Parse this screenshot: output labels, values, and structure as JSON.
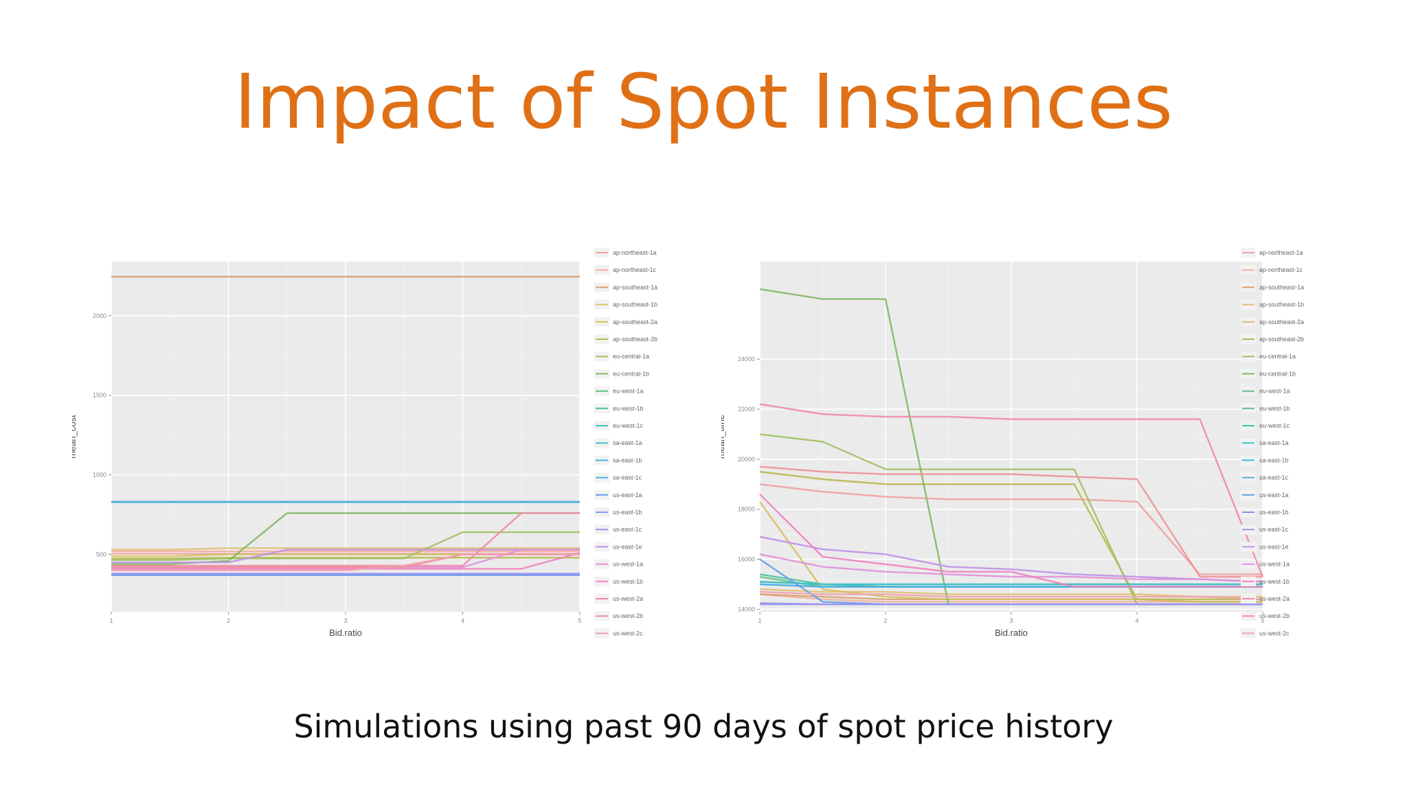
{
  "slide": {
    "title": "Impact of Spot Instances",
    "caption": "Simulations using past 90 days of spot price history",
    "title_color": "#e07016"
  },
  "chart_data": [
    {
      "type": "line",
      "xlabel": "Bid.ratio",
      "ylabel": "mean_cost",
      "xlim": [
        1,
        5
      ],
      "ylim": [
        140,
        2340
      ],
      "x_ticks": [
        1,
        2,
        3,
        4,
        5
      ],
      "y_ticks": [
        500,
        1000,
        1500,
        2000
      ],
      "grid": true,
      "legend_position": "right",
      "x": [
        1,
        1.5,
        2,
        2.5,
        3,
        3.5,
        4,
        4.5,
        5
      ],
      "series": [
        {
          "name": "ap-northeast-1a",
          "color": "#f0a0a0",
          "values": [
            505,
            505,
            505,
            505,
            505,
            505,
            505,
            505,
            505
          ]
        },
        {
          "name": "ap-northeast-1c",
          "color": "#f3b0a0",
          "values": [
            520,
            520,
            520,
            520,
            520,
            520,
            520,
            520,
            520
          ]
        },
        {
          "name": "ap-southeast-1a",
          "color": "#d8a070",
          "values": [
            2245,
            2245,
            2245,
            2245,
            2245,
            2245,
            2245,
            2245,
            2245
          ]
        },
        {
          "name": "ap-southeast-1b",
          "color": "#e0c070",
          "values": [
            530,
            530,
            540,
            540,
            540,
            540,
            540,
            540,
            540
          ]
        },
        {
          "name": "ap-southeast-2a",
          "color": "#d6c060",
          "values": [
            490,
            490,
            500,
            500,
            500,
            500,
            500,
            500,
            500
          ]
        },
        {
          "name": "ap-southeast-2b",
          "color": "#b8b850",
          "values": [
            475,
            475,
            480,
            480,
            480,
            480,
            480,
            480,
            480
          ]
        },
        {
          "name": "eu-central-1a",
          "color": "#a0c060",
          "values": [
            465,
            465,
            475,
            475,
            475,
            475,
            640,
            640,
            640
          ]
        },
        {
          "name": "eu-central-1b",
          "color": "#80b860",
          "values": [
            440,
            440,
            460,
            760,
            760,
            760,
            760,
            760,
            760
          ]
        },
        {
          "name": "eu-west-1a",
          "color": "#60c080",
          "values": [
            830,
            830,
            830,
            830,
            830,
            830,
            830,
            830,
            830
          ]
        },
        {
          "name": "eu-west-1b",
          "color": "#50c0a0",
          "values": [
            830,
            830,
            830,
            830,
            830,
            830,
            830,
            830,
            830
          ]
        },
        {
          "name": "eu-west-1c",
          "color": "#40c0b0",
          "values": [
            830,
            830,
            830,
            830,
            830,
            830,
            830,
            830,
            830
          ]
        },
        {
          "name": "sa-east-1a",
          "color": "#40c0c8",
          "values": [
            830,
            830,
            830,
            830,
            830,
            830,
            830,
            830,
            830
          ]
        },
        {
          "name": "sa-east-1b",
          "color": "#40b8d8",
          "values": [
            830,
            830,
            830,
            830,
            830,
            830,
            830,
            830,
            830
          ]
        },
        {
          "name": "sa-east-1c",
          "color": "#50b0e0",
          "values": [
            830,
            830,
            830,
            830,
            830,
            830,
            830,
            830,
            830
          ]
        },
        {
          "name": "us-east-1a",
          "color": "#60a0e8",
          "values": [
            370,
            370,
            370,
            370,
            370,
            370,
            370,
            370,
            370
          ]
        },
        {
          "name": "us-east-1b",
          "color": "#8098f0",
          "values": [
            375,
            375,
            375,
            375,
            375,
            375,
            375,
            375,
            375
          ]
        },
        {
          "name": "us-east-1c",
          "color": "#a090f0",
          "values": [
            380,
            380,
            380,
            380,
            380,
            380,
            380,
            380,
            380
          ]
        },
        {
          "name": "us-east-1e",
          "color": "#c090e8",
          "values": [
            450,
            450,
            450,
            530,
            530,
            530,
            530,
            530,
            530
          ]
        },
        {
          "name": "us-west-1a",
          "color": "#e090d8",
          "values": [
            420,
            420,
            420,
            420,
            420,
            420,
            420,
            530,
            530
          ]
        },
        {
          "name": "us-west-1b",
          "color": "#f080c0",
          "values": [
            410,
            410,
            410,
            410,
            410,
            410,
            410,
            410,
            510
          ]
        },
        {
          "name": "us-west-2a",
          "color": "#f088a8",
          "values": [
            430,
            430,
            430,
            430,
            430,
            430,
            430,
            760,
            760
          ]
        },
        {
          "name": "us-west-2b",
          "color": "#f09098",
          "values": [
            420,
            420,
            420,
            420,
            420,
            420,
            500,
            500,
            500
          ]
        },
        {
          "name": "us-west-2c",
          "color": "#f0a0b0",
          "values": [
            400,
            400,
            400,
            400,
            400,
            430,
            500,
            500,
            500
          ]
        }
      ]
    },
    {
      "type": "line",
      "xlabel": "Bid.ratio",
      "ylabel": "mean_time",
      "xlim": [
        1,
        5
      ],
      "ylim": [
        13900,
        27900
      ],
      "x_ticks": [
        1,
        2,
        3,
        4,
        5
      ],
      "y_ticks": [
        14000,
        16000,
        18000,
        20000,
        22000,
        24000
      ],
      "grid": true,
      "legend_position": "right",
      "x": [
        1,
        1.5,
        2,
        2.5,
        3,
        3.5,
        4,
        4.5,
        5
      ],
      "series": [
        {
          "name": "ap-northeast-1a",
          "color": "#f0a0a0",
          "values": [
            19000,
            18700,
            18500,
            18400,
            18400,
            18400,
            18300,
            15400,
            15400
          ]
        },
        {
          "name": "ap-northeast-1c",
          "color": "#f3b0a0",
          "values": [
            14600,
            14400,
            14300,
            14300,
            14300,
            14300,
            14300,
            14300,
            14300
          ]
        },
        {
          "name": "ap-southeast-1a",
          "color": "#d8a070",
          "values": [
            14600,
            14500,
            14400,
            14400,
            14400,
            14400,
            14400,
            14300,
            14300
          ]
        },
        {
          "name": "ap-southeast-1b",
          "color": "#e0c070",
          "values": [
            14800,
            14700,
            14700,
            14600,
            14600,
            14600,
            14600,
            14500,
            14500
          ]
        },
        {
          "name": "ap-southeast-2a",
          "color": "#d6c060",
          "values": [
            18300,
            14800,
            14500,
            14400,
            14400,
            14400,
            14400,
            14300,
            14300
          ]
        },
        {
          "name": "ap-southeast-2b",
          "color": "#b8b850",
          "values": [
            19500,
            19200,
            19000,
            19000,
            19000,
            19000,
            14400,
            14400,
            14400
          ]
        },
        {
          "name": "eu-central-1a",
          "color": "#a0c060",
          "values": [
            21000,
            20700,
            19600,
            19600,
            19600,
            19600,
            14200,
            14200,
            14200
          ]
        },
        {
          "name": "eu-central-1b",
          "color": "#80b860",
          "values": [
            26800,
            26400,
            26400,
            14200,
            14200,
            14200,
            14200,
            14200,
            14200
          ]
        },
        {
          "name": "eu-west-1a",
          "color": "#60c080",
          "values": [
            15300,
            14900,
            14900,
            14900,
            14900,
            14900,
            14900,
            14900,
            14900
          ]
        },
        {
          "name": "eu-west-1b",
          "color": "#50c0a0",
          "values": [
            15400,
            15000,
            15000,
            15000,
            15000,
            15000,
            15000,
            15000,
            15000
          ]
        },
        {
          "name": "eu-west-1c",
          "color": "#40c0b0",
          "values": [
            15100,
            15000,
            14900,
            14900,
            14900,
            14900,
            14900,
            14900,
            14900
          ]
        },
        {
          "name": "sa-east-1a",
          "color": "#40c0c8",
          "values": [
            15100,
            15000,
            15000,
            15000,
            15000,
            15000,
            15000,
            15000,
            15000
          ]
        },
        {
          "name": "sa-east-1b",
          "color": "#40b8d8",
          "values": [
            15000,
            14900,
            14900,
            14900,
            14900,
            14900,
            14900,
            14900,
            14900
          ]
        },
        {
          "name": "sa-east-1c",
          "color": "#50b0e0",
          "values": [
            15000,
            14900,
            14900,
            14900,
            14900,
            14900,
            14900,
            14900,
            14900
          ]
        },
        {
          "name": "us-east-1a",
          "color": "#60a0e8",
          "values": [
            16000,
            14300,
            14200,
            14200,
            14200,
            14200,
            14200,
            14200,
            14200
          ]
        },
        {
          "name": "us-east-1b",
          "color": "#8098f0",
          "values": [
            14200,
            14200,
            14200,
            14200,
            14200,
            14200,
            14200,
            14200,
            14200
          ]
        },
        {
          "name": "us-east-1c",
          "color": "#a090f0",
          "values": [
            14250,
            14200,
            14200,
            14200,
            14200,
            14200,
            14200,
            14200,
            14200
          ]
        },
        {
          "name": "us-east-1e",
          "color": "#c090e8",
          "values": [
            16900,
            16400,
            16200,
            15700,
            15600,
            15400,
            15300,
            15200,
            15100
          ]
        },
        {
          "name": "us-west-1a",
          "color": "#e090d8",
          "values": [
            16200,
            15700,
            15500,
            15400,
            15300,
            15300,
            15200,
            15200,
            15100
          ]
        },
        {
          "name": "us-west-1b",
          "color": "#f080c0",
          "values": [
            18600,
            16100,
            15800,
            15500,
            15500,
            14900,
            14900,
            14900,
            14900
          ]
        },
        {
          "name": "us-west-2a",
          "color": "#f088a8",
          "values": [
            22200,
            21800,
            21700,
            21700,
            21600,
            21600,
            21600,
            21600,
            15300
          ]
        },
        {
          "name": "us-west-2b",
          "color": "#f09098",
          "values": [
            19700,
            19500,
            19400,
            19400,
            19400,
            19300,
            19200,
            15300,
            15300
          ]
        },
        {
          "name": "us-west-2c",
          "color": "#f0a0b0",
          "values": [
            14700,
            14600,
            14600,
            14500,
            14500,
            14500,
            14500,
            14500,
            14400
          ]
        }
      ]
    }
  ]
}
